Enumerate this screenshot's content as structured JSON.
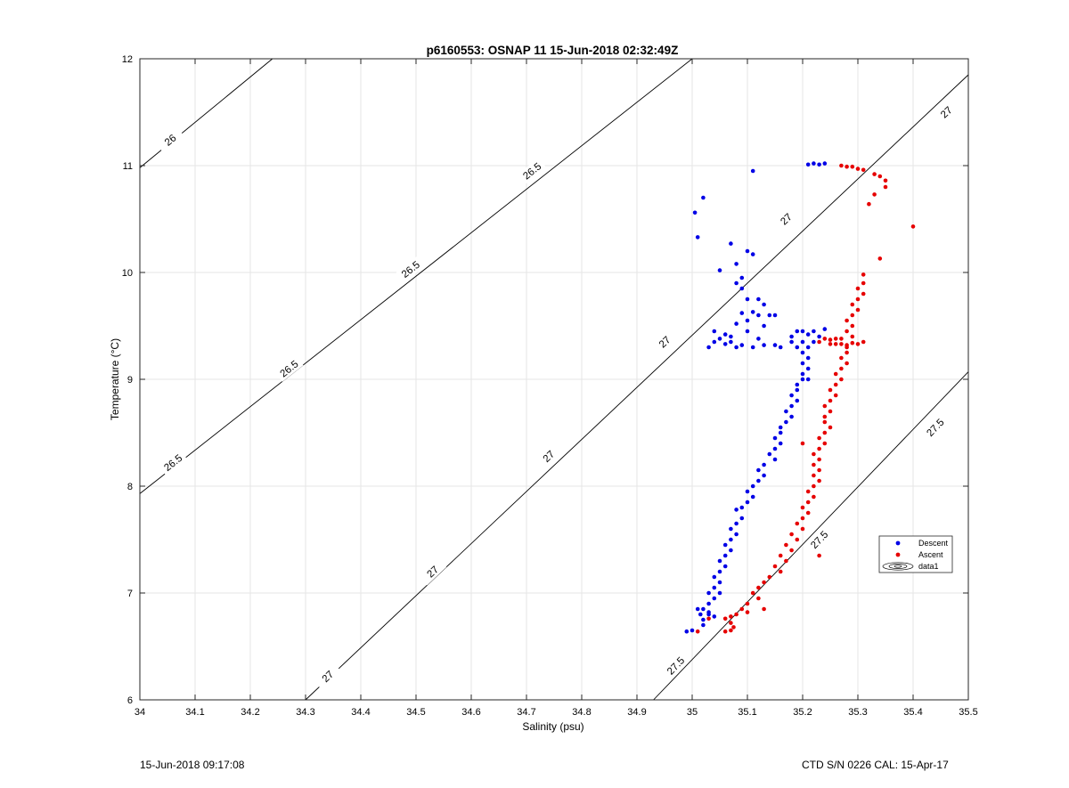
{
  "chart_data": {
    "type": "scatter",
    "title": "p6160553: OSNAP 11 15-Jun-2018 02:32:49Z",
    "xlabel": "Salinity (psu)",
    "ylabel": "Temperature (°C)",
    "xlim": [
      34,
      35.5
    ],
    "ylim": [
      6,
      12
    ],
    "xticks": [
      "34",
      "34.1",
      "34.2",
      "34.3",
      "34.4",
      "34.5",
      "34.6",
      "34.7",
      "34.8",
      "34.9",
      "35",
      "35.1",
      "35.2",
      "35.3",
      "35.4",
      "35.5"
    ],
    "yticks": [
      "6",
      "7",
      "8",
      "9",
      "10",
      "11",
      "12"
    ],
    "grid": true,
    "legend": {
      "placement": "right",
      "entries": [
        "Descent",
        "Ascent",
        "data1"
      ]
    },
    "contours": [
      {
        "label": "26",
        "points": [
          [
            34.0,
            10.98
          ],
          [
            34.24,
            12.0
          ]
        ],
        "label_at": [
          34.055,
          11.24
        ]
      },
      {
        "label": "26.5",
        "points": [
          [
            34.0,
            7.93
          ],
          [
            35.0,
            12.0
          ]
        ],
        "label_at": [
          [
            34.06,
            8.22
          ],
          [
            34.27,
            9.1
          ],
          [
            34.49,
            10.03
          ],
          [
            34.71,
            10.95
          ]
        ]
      },
      {
        "label": "27",
        "points": [
          [
            34.3,
            6.0
          ],
          [
            35.5,
            11.85
          ]
        ],
        "label_at": [
          [
            34.34,
            6.22
          ],
          [
            34.53,
            7.2
          ],
          [
            34.74,
            8.28
          ],
          [
            34.95,
            9.35
          ],
          [
            35.17,
            10.5
          ],
          [
            35.46,
            11.5
          ]
        ]
      },
      {
        "label": "27.5",
        "points": [
          [
            34.93,
            6.0
          ],
          [
            35.5,
            9.07
          ]
        ],
        "label_at": [
          [
            34.97,
            6.32
          ],
          [
            35.23,
            7.5
          ],
          [
            35.44,
            8.55
          ]
        ]
      }
    ],
    "series": [
      {
        "name": "Descent",
        "color": "#0000e6",
        "points": [
          [
            35.11,
            10.95
          ],
          [
            35.21,
            11.01
          ],
          [
            35.22,
            11.02
          ],
          [
            35.23,
            11.01
          ],
          [
            35.24,
            11.02
          ],
          [
            35.005,
            10.56
          ],
          [
            35.01,
            10.33
          ],
          [
            35.02,
            10.7
          ],
          [
            35.07,
            10.27
          ],
          [
            35.08,
            10.08
          ],
          [
            35.05,
            10.02
          ],
          [
            35.1,
            10.2
          ],
          [
            35.11,
            10.17
          ],
          [
            35.09,
            9.95
          ],
          [
            35.09,
            9.85
          ],
          [
            35.08,
            9.9
          ],
          [
            35.1,
            9.75
          ],
          [
            35.12,
            9.75
          ],
          [
            35.13,
            9.7
          ],
          [
            35.11,
            9.63
          ],
          [
            35.12,
            9.6
          ],
          [
            35.14,
            9.6
          ],
          [
            35.15,
            9.6
          ],
          [
            35.1,
            9.55
          ],
          [
            35.08,
            9.52
          ],
          [
            35.1,
            9.45
          ],
          [
            35.09,
            9.62
          ],
          [
            35.13,
            9.5
          ],
          [
            35.06,
            9.42
          ],
          [
            35.05,
            9.38
          ],
          [
            35.04,
            9.35
          ],
          [
            35.06,
            9.33
          ],
          [
            35.07,
            9.35
          ],
          [
            35.08,
            9.3
          ],
          [
            35.09,
            9.32
          ],
          [
            35.11,
            9.3
          ],
          [
            35.13,
            9.32
          ],
          [
            35.15,
            9.32
          ],
          [
            35.16,
            9.3
          ],
          [
            35.12,
            9.38
          ],
          [
            35.07,
            9.4
          ],
          [
            35.03,
            9.3
          ],
          [
            35.04,
            9.45
          ],
          [
            35.18,
            9.4
          ],
          [
            35.19,
            9.45
          ],
          [
            35.2,
            9.45
          ],
          [
            35.21,
            9.42
          ],
          [
            35.22,
            9.45
          ],
          [
            35.23,
            9.4
          ],
          [
            35.24,
            9.47
          ],
          [
            35.22,
            9.35
          ],
          [
            35.21,
            9.3
          ],
          [
            35.2,
            9.35
          ],
          [
            35.19,
            9.3
          ],
          [
            35.18,
            9.35
          ],
          [
            35.2,
            9.25
          ],
          [
            35.21,
            9.2
          ],
          [
            35.2,
            9.15
          ],
          [
            35.21,
            9.1
          ],
          [
            35.2,
            9.05
          ],
          [
            35.21,
            9.0
          ],
          [
            35.19,
            8.95
          ],
          [
            35.2,
            9.0
          ],
          [
            35.19,
            8.9
          ],
          [
            35.18,
            8.85
          ],
          [
            35.19,
            8.8
          ],
          [
            35.18,
            8.75
          ],
          [
            35.17,
            8.7
          ],
          [
            35.18,
            8.65
          ],
          [
            35.17,
            8.6
          ],
          [
            35.16,
            8.55
          ],
          [
            35.16,
            8.5
          ],
          [
            35.15,
            8.45
          ],
          [
            35.16,
            8.4
          ],
          [
            35.15,
            8.35
          ],
          [
            35.14,
            8.3
          ],
          [
            35.15,
            8.25
          ],
          [
            35.13,
            8.2
          ],
          [
            35.12,
            8.15
          ],
          [
            35.13,
            8.1
          ],
          [
            35.12,
            8.05
          ],
          [
            35.11,
            8.0
          ],
          [
            35.1,
            7.95
          ],
          [
            35.11,
            7.9
          ],
          [
            35.1,
            7.85
          ],
          [
            35.09,
            7.8
          ],
          [
            35.08,
            7.78
          ],
          [
            35.09,
            7.7
          ],
          [
            35.08,
            7.65
          ],
          [
            35.07,
            7.6
          ],
          [
            35.08,
            7.55
          ],
          [
            35.07,
            7.5
          ],
          [
            35.06,
            7.45
          ],
          [
            35.07,
            7.4
          ],
          [
            35.06,
            7.35
          ],
          [
            35.05,
            7.3
          ],
          [
            35.06,
            7.25
          ],
          [
            35.05,
            7.2
          ],
          [
            35.04,
            7.15
          ],
          [
            35.05,
            7.1
          ],
          [
            35.04,
            7.05
          ],
          [
            35.03,
            7.0
          ],
          [
            35.04,
            6.95
          ],
          [
            35.03,
            6.9
          ],
          [
            35.02,
            6.85
          ],
          [
            35.03,
            6.8
          ],
          [
            35.02,
            6.75
          ],
          [
            35.04,
            6.78
          ],
          [
            35.03,
            6.82
          ],
          [
            35.01,
            6.85
          ],
          [
            35.015,
            6.8
          ],
          [
            35.02,
            6.7
          ],
          [
            35.0,
            6.65
          ],
          [
            34.99,
            6.64
          ],
          [
            35.05,
            7.0
          ]
        ]
      },
      {
        "name": "Ascent",
        "color": "#e60000",
        "points": [
          [
            35.27,
            11.0
          ],
          [
            35.28,
            10.99
          ],
          [
            35.29,
            10.99
          ],
          [
            35.3,
            10.97
          ],
          [
            35.31,
            10.96
          ],
          [
            35.33,
            10.92
          ],
          [
            35.34,
            10.9
          ],
          [
            35.35,
            10.86
          ],
          [
            35.35,
            10.8
          ],
          [
            35.33,
            10.73
          ],
          [
            35.32,
            10.64
          ],
          [
            35.4,
            10.43
          ],
          [
            35.34,
            10.13
          ],
          [
            35.31,
            9.98
          ],
          [
            35.31,
            9.9
          ],
          [
            35.3,
            9.85
          ],
          [
            35.31,
            9.8
          ],
          [
            35.3,
            9.75
          ],
          [
            35.29,
            9.7
          ],
          [
            35.3,
            9.65
          ],
          [
            35.29,
            9.6
          ],
          [
            35.28,
            9.55
          ],
          [
            35.29,
            9.5
          ],
          [
            35.28,
            9.45
          ],
          [
            35.29,
            9.4
          ],
          [
            35.27,
            9.38
          ],
          [
            35.26,
            9.38
          ],
          [
            35.25,
            9.37
          ],
          [
            35.24,
            9.38
          ],
          [
            35.23,
            9.35
          ],
          [
            35.25,
            9.33
          ],
          [
            35.26,
            9.33
          ],
          [
            35.27,
            9.33
          ],
          [
            35.28,
            9.32
          ],
          [
            35.29,
            9.34
          ],
          [
            35.3,
            9.33
          ],
          [
            35.31,
            9.35
          ],
          [
            35.28,
            9.3
          ],
          [
            35.28,
            9.25
          ],
          [
            35.27,
            9.2
          ],
          [
            35.28,
            9.15
          ],
          [
            35.27,
            9.1
          ],
          [
            35.26,
            9.05
          ],
          [
            35.27,
            9.0
          ],
          [
            35.26,
            8.95
          ],
          [
            35.25,
            8.9
          ],
          [
            35.26,
            8.85
          ],
          [
            35.25,
            8.8
          ],
          [
            35.24,
            8.75
          ],
          [
            35.25,
            8.7
          ],
          [
            35.24,
            8.65
          ],
          [
            35.24,
            8.6
          ],
          [
            35.25,
            8.55
          ],
          [
            35.24,
            8.5
          ],
          [
            35.23,
            8.45
          ],
          [
            35.24,
            8.4
          ],
          [
            35.23,
            8.35
          ],
          [
            35.22,
            8.3
          ],
          [
            35.23,
            8.25
          ],
          [
            35.22,
            8.2
          ],
          [
            35.23,
            8.15
          ],
          [
            35.22,
            8.1
          ],
          [
            35.23,
            8.05
          ],
          [
            35.22,
            8.0
          ],
          [
            35.21,
            7.95
          ],
          [
            35.22,
            7.9
          ],
          [
            35.21,
            7.85
          ],
          [
            35.2,
            7.8
          ],
          [
            35.21,
            7.75
          ],
          [
            35.2,
            7.7
          ],
          [
            35.19,
            7.65
          ],
          [
            35.2,
            7.6
          ],
          [
            35.18,
            7.55
          ],
          [
            35.19,
            7.5
          ],
          [
            35.17,
            7.45
          ],
          [
            35.18,
            7.4
          ],
          [
            35.16,
            7.35
          ],
          [
            35.17,
            7.3
          ],
          [
            35.15,
            7.25
          ],
          [
            35.16,
            7.2
          ],
          [
            35.14,
            7.15
          ],
          [
            35.13,
            7.1
          ],
          [
            35.12,
            7.05
          ],
          [
            35.11,
            7.0
          ],
          [
            35.12,
            6.95
          ],
          [
            35.1,
            6.9
          ],
          [
            35.09,
            6.85
          ],
          [
            35.1,
            6.82
          ],
          [
            35.08,
            6.8
          ],
          [
            35.07,
            6.78
          ],
          [
            35.06,
            6.76
          ],
          [
            35.07,
            6.72
          ],
          [
            35.075,
            6.68
          ],
          [
            35.07,
            6.65
          ],
          [
            35.06,
            6.64
          ],
          [
            35.01,
            6.64
          ],
          [
            35.03,
            6.76
          ],
          [
            35.2,
            8.4
          ],
          [
            35.23,
            7.35
          ],
          [
            35.13,
            6.85
          ]
        ]
      }
    ]
  },
  "footer": {
    "left": "15-Jun-2018 09:17:08",
    "right": "CTD S/N 0226  CAL: 15-Apr-17"
  }
}
